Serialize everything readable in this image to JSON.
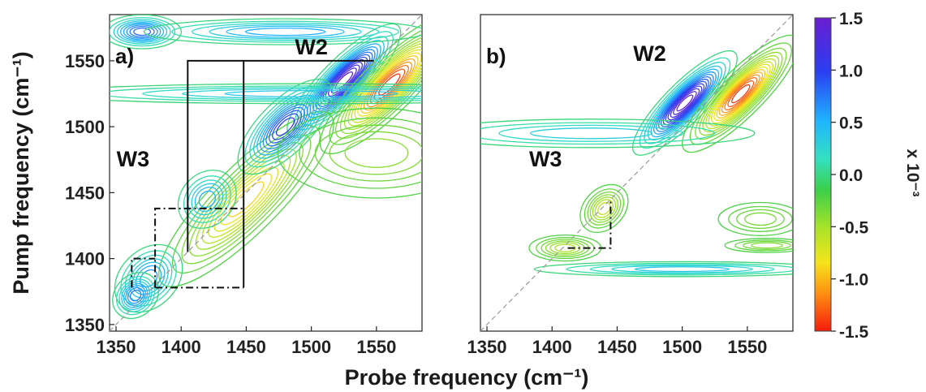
{
  "chart_data": [
    {
      "type": "heatmap",
      "panel_label": "a)",
      "xlabel": "Probe frequency (cm⁻¹)",
      "ylabel": "Pump frequency (cm⁻¹)",
      "xlim": [
        1345,
        1585
      ],
      "ylim": [
        1345,
        1585
      ],
      "xticks": [
        1350,
        1400,
        1450,
        1500,
        1550
      ],
      "yticks": [
        1350,
        1400,
        1450,
        1500,
        1550
      ],
      "annotations": [
        {
          "text": "W2",
          "x": 1500,
          "y": 1555
        },
        {
          "text": "W3",
          "x": 1363,
          "y": 1470
        }
      ],
      "peaks": [
        {
          "x": 1525,
          "y": 1535,
          "sx": 26,
          "sy": 13,
          "rho": 0.85,
          "amp": 1.5
        },
        {
          "x": 1560,
          "y": 1532,
          "sx": 28,
          "sy": 18,
          "rho": 0.85,
          "amp": -1.5
        },
        {
          "x": 1450,
          "y": 1445,
          "sx": 34,
          "sy": 26,
          "rho": 0.95,
          "amp": -1.0
        },
        {
          "x": 1480,
          "y": 1500,
          "sx": 22,
          "sy": 12,
          "rho": 0.7,
          "amp": 1.1
        },
        {
          "x": 1375,
          "y": 1385,
          "sx": 10,
          "sy": 16,
          "rho": 0.3,
          "amp": 0.7
        },
        {
          "x": 1365,
          "y": 1372,
          "sx": 7,
          "sy": 10,
          "rho": 0.2,
          "amp": 0.8
        },
        {
          "x": 1420,
          "y": 1445,
          "sx": 18,
          "sy": 7,
          "rho": 0.2,
          "amp": 0.6
        },
        {
          "x": 1500,
          "y": 1525,
          "sx": 110,
          "sy": 4,
          "rho": 0.0,
          "amp": 0.45
        },
        {
          "x": 1370,
          "y": 1572,
          "sx": 14,
          "sy": 6,
          "rho": 0.0,
          "amp": 0.9
        },
        {
          "x": 1480,
          "y": 1572,
          "sx": 55,
          "sy": 5,
          "rho": 0.0,
          "amp": 0.6
        },
        {
          "x": 1550,
          "y": 1480,
          "sx": 40,
          "sy": 18,
          "rho": 0.0,
          "amp": -0.45
        }
      ],
      "lines": [
        {
          "style": "solid",
          "points": [
            [
              1405,
              1405
            ],
            [
              1405,
              1550
            ],
            [
              1448,
              1550
            ],
            [
              1448,
              1378
            ]
          ]
        },
        {
          "style": "solid",
          "points": [
            [
              1448,
              1550
            ],
            [
              1548,
              1550
            ]
          ]
        },
        {
          "style": "dashdot",
          "points": [
            [
              1380,
              1378
            ],
            [
              1380,
              1438
            ],
            [
              1448,
              1438
            ]
          ]
        },
        {
          "style": "dashdot",
          "points": [
            [
              1380,
              1378
            ],
            [
              1448,
              1378
            ]
          ]
        },
        {
          "style": "dashdot",
          "points": [
            [
              1362,
              1378
            ],
            [
              1362,
              1400
            ],
            [
              1380,
              1400
            ]
          ]
        }
      ]
    },
    {
      "type": "heatmap",
      "panel_label": "b)",
      "xlabel": "",
      "ylabel": "",
      "xlim": [
        1345,
        1585
      ],
      "ylim": [
        1345,
        1585
      ],
      "xticks": [
        1350,
        1400,
        1450,
        1500,
        1550
      ],
      "annotations": [
        {
          "text": "W2",
          "x": 1475,
          "y": 1550
        },
        {
          "text": "W3",
          "x": 1395,
          "y": 1470
        }
      ],
      "peaks": [
        {
          "x": 1502,
          "y": 1518,
          "sx": 22,
          "sy": 13,
          "rho": 0.85,
          "amp": 1.5
        },
        {
          "x": 1545,
          "y": 1525,
          "sx": 24,
          "sy": 15,
          "rho": 0.85,
          "amp": -1.5
        },
        {
          "x": 1440,
          "y": 1438,
          "sx": 8,
          "sy": 10,
          "rho": 0.3,
          "amp": -0.7
        },
        {
          "x": 1410,
          "y": 1408,
          "sx": 14,
          "sy": 5,
          "rho": 0.0,
          "amp": -0.6
        },
        {
          "x": 1430,
          "y": 1495,
          "sx": 70,
          "sy": 6,
          "rho": 0.0,
          "amp": 0.4
        },
        {
          "x": 1500,
          "y": 1392,
          "sx": 60,
          "sy": 3,
          "rho": 0.0,
          "amp": 0.45
        },
        {
          "x": 1565,
          "y": 1410,
          "sx": 18,
          "sy": 3,
          "rho": 0.0,
          "amp": -0.4
        },
        {
          "x": 1560,
          "y": 1430,
          "sx": 18,
          "sy": 7,
          "rho": 0.0,
          "amp": -0.35
        }
      ],
      "lines": [
        {
          "style": "dashdot",
          "points": [
            [
              1412,
              1408
            ],
            [
              1445,
              1408
            ],
            [
              1445,
              1445
            ]
          ]
        }
      ]
    }
  ],
  "colorbar": {
    "ticks": [
      "1.5",
      "1.0",
      "0.5",
      "0.0",
      "-0.5",
      "-1.0",
      "-1.5"
    ],
    "range": [
      -1.5,
      1.5
    ],
    "label": "x 10⁻³"
  }
}
